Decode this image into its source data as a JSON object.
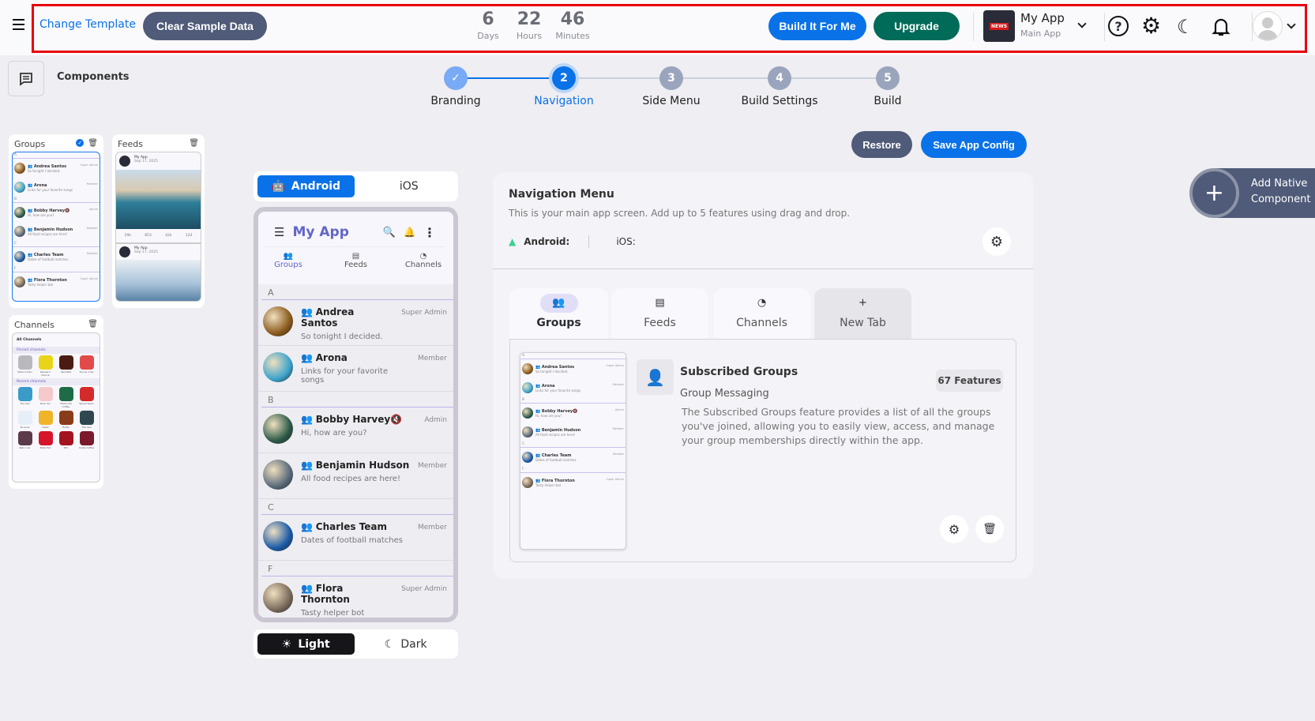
{
  "header": {
    "change_template": "Change Template",
    "clear_sample": "Clear Sample Data",
    "timer": [
      {
        "value": "6",
        "label": "Days"
      },
      {
        "value": "22",
        "label": "Hours"
      },
      {
        "value": "46",
        "label": "Minutes"
      }
    ],
    "build_it": "Build It For Me",
    "upgrade": "Upgrade",
    "app_name": "My App",
    "app_sub": "Main App",
    "logo_text": "NEWS"
  },
  "components_label": "Components",
  "steps": [
    {
      "num": "✓",
      "label": "Branding",
      "state": "done"
    },
    {
      "num": "2",
      "label": "Navigation",
      "state": "active"
    },
    {
      "num": "3",
      "label": "Side Menu",
      "state": "todo"
    },
    {
      "num": "4",
      "label": "Build Settings",
      "state": "todo"
    },
    {
      "num": "5",
      "label": "Build",
      "state": "todo"
    }
  ],
  "actions": {
    "restore": "Restore",
    "save": "Save App Config",
    "add_native": "Add Native",
    "add_native2": "Component"
  },
  "thumbs": {
    "groups": "Groups",
    "feeds": "Feeds",
    "channels": "Channels",
    "feed": {
      "app": "My App",
      "date": "Sep 17, 2025",
      "counts": [
        "29k",
        "853",
        "42k",
        "124"
      ]
    },
    "channels_data": {
      "all": "All Channels",
      "pinned": "Pinned channels",
      "recent": "Recent channels",
      "pinned_items": [
        {
          "name": "Rhino's Den",
          "color": "#b8b8bd"
        },
        {
          "name": "Reader's Choice",
          "color": "#e8d51a"
        },
        {
          "name": "Vendetta",
          "color": "#4a1b12"
        },
        {
          "name": "Soccer Club",
          "color": "#e24a4a"
        }
      ],
      "recent_items": [
        {
          "name": "The Sea",
          "color": "#3a9bc8"
        },
        {
          "name": "Rock You",
          "color": "#f6c9cb"
        },
        {
          "name": "Starbucks Coffee",
          "color": "#1e6b47"
        },
        {
          "name": "Speed Sport",
          "color": "#d52a2a"
        },
        {
          "name": "St Louis",
          "color": "#e6eef8"
        },
        {
          "name": "Giant",
          "color": "#f0b429"
        },
        {
          "name": "Firefly",
          "color": "#8a3b1a"
        },
        {
          "name": "The Sea",
          "color": "#2f4850"
        },
        {
          "name": "Retro Car",
          "color": "#5b3a4a"
        },
        {
          "name": "Pizza Hut",
          "color": "#d6152b"
        },
        {
          "name": "KFC",
          "color": "#a4141f"
        },
        {
          "name": "Costa Coffee",
          "color": "#7a1a2c"
        }
      ]
    }
  },
  "platform": {
    "android": "Android",
    "ios": "iOS"
  },
  "phone": {
    "title": "My App",
    "tabs": [
      "Groups",
      "Feeds",
      "Channels"
    ],
    "sections": [
      {
        "letter": "A",
        "rows": [
          {
            "name": "Andrea Santos",
            "msg": "So tonight I decided.",
            "role": "Super Admin",
            "color": "#8a5a1c"
          },
          {
            "name": "Arona",
            "msg": "Links for your favorite songs",
            "role": "Member",
            "color": "#3ba3cc"
          }
        ]
      },
      {
        "letter": "B",
        "rows": [
          {
            "name": "Bobby Harvey",
            "msg": "Hi, how are you?",
            "role": "Admin",
            "color": "#2c5a48",
            "muted": true
          },
          {
            "name": "Benjamin Hudson",
            "msg": "All food recipes are here!",
            "role": "Member",
            "color": "#5a6a7a"
          }
        ]
      },
      {
        "letter": "C",
        "rows": [
          {
            "name": "Charles Team",
            "msg": "Dates of football matches",
            "role": "Member",
            "color": "#1a5aa8"
          }
        ]
      },
      {
        "letter": "F",
        "rows": [
          {
            "name": "Flora Thornton",
            "msg": "Tasty helper bot",
            "role": "Super Admin",
            "color": "#7a6a5a"
          }
        ]
      }
    ]
  },
  "theme": {
    "light": "Light",
    "dark": "Dark"
  },
  "nav": {
    "title": "Navigation Menu",
    "subtitle": "This is your main app screen. Add up to 5 features using drag and drop.",
    "android": "Android:",
    "ios": "iOS:",
    "tabs": [
      "Groups",
      "Feeds",
      "Channels",
      "New Tab"
    ],
    "feature": {
      "title": "Subscribed Groups",
      "category": "Group Messaging",
      "badge": "67 Features",
      "desc": "The Subscribed Groups feature provides a list of all the groups you've joined, allowing you to easily view, access, and manage your group memberships directly within the app."
    }
  },
  "colors": {
    "primary": "#0a72e8",
    "upgrade": "#006b58",
    "slate": "#4f5b78",
    "accent_purple": "#6366c7"
  }
}
